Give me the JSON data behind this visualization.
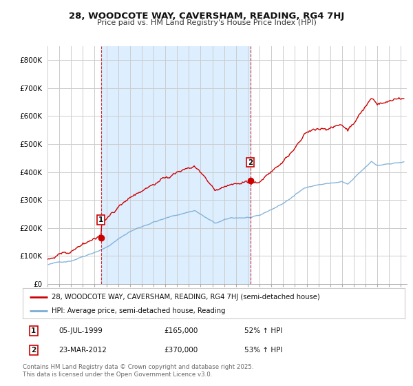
{
  "title_line1": "28, WOODCOTE WAY, CAVERSHAM, READING, RG4 7HJ",
  "title_line2": "Price paid vs. HM Land Registry's House Price Index (HPI)",
  "background_color": "#ffffff",
  "plot_bg_color": "#ffffff",
  "grid_color": "#cccccc",
  "red_color": "#cc0000",
  "blue_color": "#7aadd4",
  "shade_color": "#ddeeff",
  "sale1_x": 1999.54,
  "sale1_y": 165000,
  "sale2_x": 2012.22,
  "sale2_y": 370000,
  "sale1_date": "05-JUL-1999",
  "sale1_price": "£165,000",
  "sale1_hpi": "52% ↑ HPI",
  "sale2_date": "23-MAR-2012",
  "sale2_price": "£370,000",
  "sale2_hpi": "53% ↑ HPI",
  "legend_line1": "28, WOODCOTE WAY, CAVERSHAM, READING, RG4 7HJ (semi-detached house)",
  "legend_line2": "HPI: Average price, semi-detached house, Reading",
  "footer": "Contains HM Land Registry data © Crown copyright and database right 2025.\nThis data is licensed under the Open Government Licence v3.0.",
  "ylim_max": 850000,
  "yticks": [
    0,
    100000,
    200000,
    300000,
    400000,
    500000,
    600000,
    700000,
    800000
  ],
  "ytick_labels": [
    "£0",
    "£100K",
    "£200K",
    "£300K",
    "£400K",
    "£500K",
    "£600K",
    "£700K",
    "£800K"
  ],
  "xmin": 1995.0,
  "xmax": 2025.5
}
